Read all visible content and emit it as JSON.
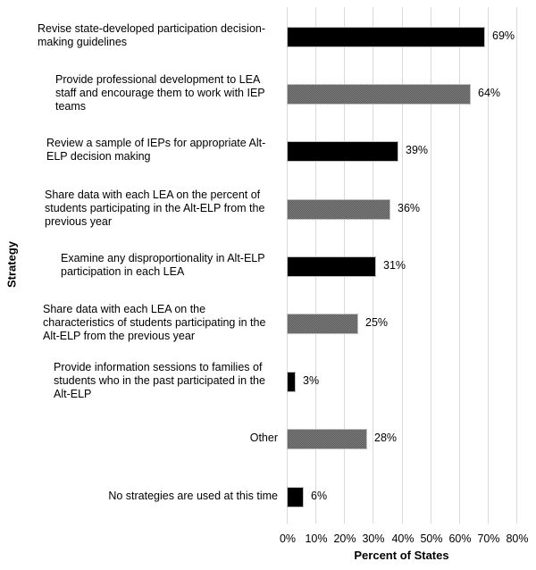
{
  "chart_data": {
    "type": "bar",
    "orientation": "horizontal",
    "title": "",
    "xlabel": "Percent of States",
    "ylabel": "Strategy",
    "xlim": [
      0,
      80
    ],
    "x_ticks": [
      "0%",
      "10%",
      "20%",
      "30%",
      "40%",
      "50%",
      "60%",
      "70%",
      "80%"
    ],
    "grid": "vertical",
    "legend": "none",
    "categories": [
      "Revise state-developed participation decision-making guidelines",
      "Provide professional development to LEA staff and encourage them to work with IEP teams",
      "Review a sample of IEPs for appropriate Alt-ELP decision making",
      "Share data with each LEA on the percent of students participating in the Alt-ELP from the previous year",
      "Examine any disproportionality in Alt-ELP participation in each LEA",
      "Share data with each LEA on the characteristics of students participating in the Alt-ELP from the previous year",
      "Provide information sessions to families of students who in the past participated in the Alt-ELP",
      "Other",
      "No strategies are used at this time"
    ],
    "values": [
      69,
      64,
      39,
      36,
      31,
      25,
      3,
      28,
      6
    ],
    "value_labels": [
      "69%",
      "64%",
      "39%",
      "36%",
      "31%",
      "25%",
      "3%",
      "28%",
      "6%"
    ],
    "bar_styles": [
      "solid",
      "pattern",
      "solid",
      "pattern",
      "solid",
      "pattern",
      "solid",
      "pattern",
      "solid"
    ],
    "colors": {
      "solid": "#000000",
      "pattern": "#7f7f7f",
      "grid": "#d9d9d9"
    }
  },
  "labels": {
    "cat0": [
      "Revise state-developed participation decision-",
      "making guidelines"
    ],
    "cat1": [
      "Provide professional development to LEA",
      "staff and encourage them to work with IEP",
      "teams"
    ],
    "cat2": [
      "Review a sample of IEPs for appropriate Alt-",
      "ELP decision making"
    ],
    "cat3": [
      "Share data with each LEA on the percent of",
      "students participating in the Alt-ELP from the",
      "previous year"
    ],
    "cat4": [
      "Examine any disproportionality in Alt-ELP",
      "participation in each LEA"
    ],
    "cat5": [
      "Share data with each LEA on the",
      "characteristics of students participating in the",
      "Alt-ELP from the previous year"
    ],
    "cat6": [
      "Provide information sessions to families of",
      "students who in the past participated in the",
      "Alt-ELP"
    ],
    "cat7": [
      "Other"
    ],
    "cat8": [
      "No strategies are used at this time"
    ]
  }
}
